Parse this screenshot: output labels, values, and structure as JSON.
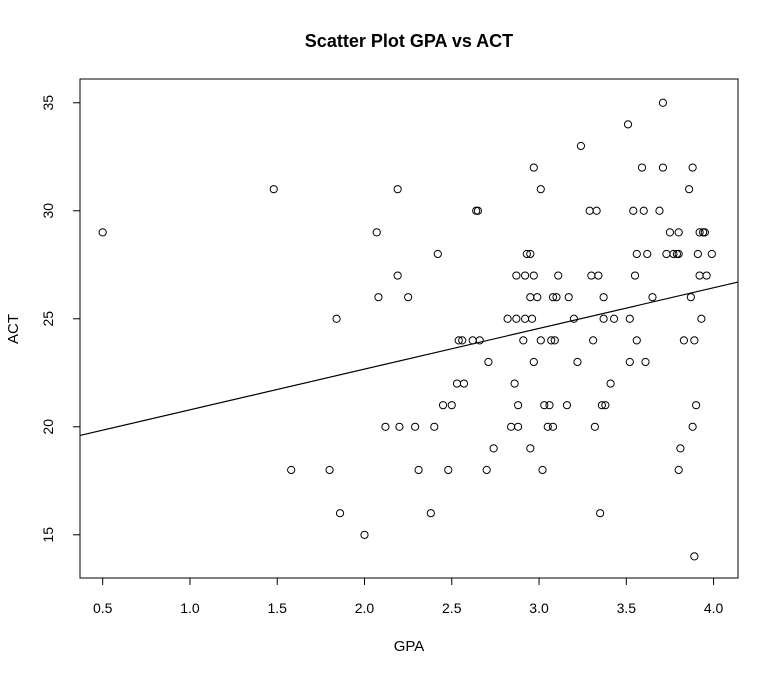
{
  "chart_data": {
    "type": "scatter",
    "title": "Scatter Plot GPA vs ACT",
    "xlabel": "GPA",
    "ylabel": "ACT",
    "xlim": [
      0.37,
      4.14
    ],
    "ylim": [
      13.0,
      36.1
    ],
    "xticks": [
      "0.5",
      "1.0",
      "1.5",
      "2.0",
      "2.5",
      "3.0",
      "3.5",
      "4.0"
    ],
    "yticks": [
      "15",
      "20",
      "25",
      "30",
      "35"
    ],
    "grid": false,
    "legend": "none",
    "marker": "open-circle",
    "regression_line": {
      "x": [
        0.37,
        4.14
      ],
      "y": [
        19.6,
        26.7
      ]
    },
    "points": [
      [
        0.5,
        29
      ],
      [
        1.48,
        31
      ],
      [
        1.58,
        18
      ],
      [
        1.8,
        18
      ],
      [
        1.84,
        25
      ],
      [
        1.86,
        16
      ],
      [
        2.0,
        15
      ],
      [
        2.07,
        29
      ],
      [
        2.08,
        26
      ],
      [
        2.12,
        20
      ],
      [
        2.19,
        27
      ],
      [
        2.19,
        31
      ],
      [
        2.2,
        20
      ],
      [
        2.25,
        26
      ],
      [
        2.29,
        20
      ],
      [
        2.31,
        18
      ],
      [
        2.38,
        16
      ],
      [
        2.4,
        20
      ],
      [
        2.42,
        28
      ],
      [
        2.45,
        21
      ],
      [
        2.48,
        18
      ],
      [
        2.5,
        21
      ],
      [
        2.53,
        22
      ],
      [
        2.54,
        24
      ],
      [
        2.56,
        24
      ],
      [
        2.57,
        22
      ],
      [
        2.62,
        24
      ],
      [
        2.64,
        30
      ],
      [
        2.65,
        30
      ],
      [
        2.66,
        24
      ],
      [
        2.7,
        18
      ],
      [
        2.71,
        23
      ],
      [
        2.74,
        19
      ],
      [
        2.82,
        25
      ],
      [
        2.84,
        20
      ],
      [
        2.86,
        22
      ],
      [
        2.87,
        25
      ],
      [
        2.87,
        27
      ],
      [
        2.88,
        21
      ],
      [
        2.88,
        20
      ],
      [
        2.91,
        24
      ],
      [
        2.92,
        25
      ],
      [
        2.93,
        28
      ],
      [
        2.92,
        27
      ],
      [
        2.95,
        28
      ],
      [
        2.95,
        26
      ],
      [
        2.95,
        19
      ],
      [
        2.96,
        25
      ],
      [
        2.97,
        32
      ],
      [
        2.97,
        27
      ],
      [
        2.97,
        23
      ],
      [
        2.99,
        26
      ],
      [
        3.01,
        31
      ],
      [
        3.01,
        24
      ],
      [
        3.02,
        18
      ],
      [
        3.03,
        21
      ],
      [
        3.05,
        20
      ],
      [
        3.06,
        21
      ],
      [
        3.07,
        24
      ],
      [
        3.08,
        26
      ],
      [
        3.08,
        20
      ],
      [
        3.09,
        24
      ],
      [
        3.1,
        26
      ],
      [
        3.11,
        27
      ],
      [
        3.16,
        21
      ],
      [
        3.17,
        26
      ],
      [
        3.2,
        25
      ],
      [
        3.22,
        23
      ],
      [
        3.24,
        33
      ],
      [
        3.29,
        30
      ],
      [
        3.3,
        27
      ],
      [
        3.31,
        24
      ],
      [
        3.32,
        20
      ],
      [
        3.33,
        30
      ],
      [
        3.34,
        27
      ],
      [
        3.35,
        16
      ],
      [
        3.36,
        21
      ],
      [
        3.37,
        25
      ],
      [
        3.37,
        26
      ],
      [
        3.38,
        21
      ],
      [
        3.41,
        22
      ],
      [
        3.43,
        25
      ],
      [
        3.51,
        34
      ],
      [
        3.52,
        23
      ],
      [
        3.52,
        25
      ],
      [
        3.54,
        30
      ],
      [
        3.55,
        27
      ],
      [
        3.56,
        28
      ],
      [
        3.56,
        24
      ],
      [
        3.59,
        32
      ],
      [
        3.6,
        30
      ],
      [
        3.61,
        23
      ],
      [
        3.62,
        28
      ],
      [
        3.65,
        26
      ],
      [
        3.69,
        30
      ],
      [
        3.71,
        35
      ],
      [
        3.71,
        32
      ],
      [
        3.73,
        28
      ],
      [
        3.75,
        29
      ],
      [
        3.77,
        28
      ],
      [
        3.79,
        28
      ],
      [
        3.8,
        28
      ],
      [
        3.8,
        29
      ],
      [
        3.8,
        18
      ],
      [
        3.81,
        19
      ],
      [
        3.83,
        24
      ],
      [
        3.86,
        31
      ],
      [
        3.87,
        26
      ],
      [
        3.88,
        32
      ],
      [
        3.88,
        20
      ],
      [
        3.89,
        24
      ],
      [
        3.89,
        14
      ],
      [
        3.9,
        21
      ],
      [
        3.91,
        28
      ],
      [
        3.92,
        29
      ],
      [
        3.92,
        27
      ],
      [
        3.93,
        25
      ],
      [
        3.94,
        29
      ],
      [
        3.95,
        29
      ],
      [
        3.96,
        27
      ],
      [
        3.99,
        28
      ]
    ]
  }
}
